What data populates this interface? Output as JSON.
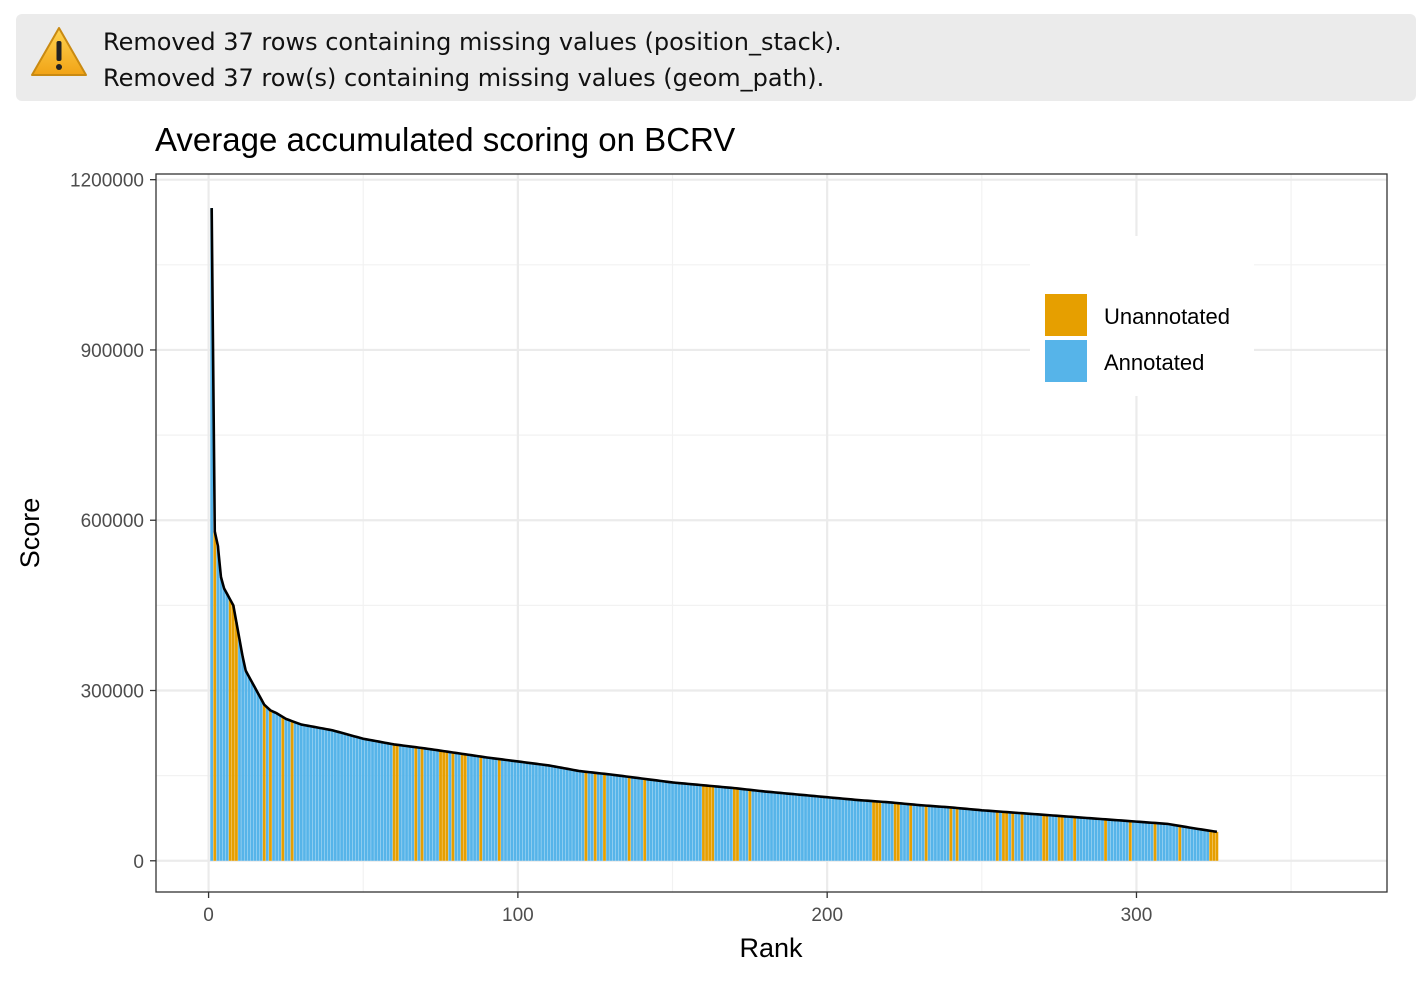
{
  "warning": {
    "icon": "warning-triangle-icon",
    "lines": [
      "Removed 37 rows containing missing values (position_stack).",
      "Removed 37 row(s) containing missing values (geom_path)."
    ]
  },
  "chart_data": {
    "type": "bar",
    "title": "Average accumulated scoring on BCRV",
    "xlabel": "Rank",
    "ylabel": "Score",
    "xlim": [
      -17,
      381
    ],
    "ylim": [
      -55000,
      1210000
    ],
    "x_ticks": [
      0,
      100,
      200,
      300
    ],
    "y_ticks": [
      0,
      300000,
      600000,
      900000,
      1200000
    ],
    "y_tick_labels": [
      "0",
      "300000",
      "600000",
      "900000",
      "1200000"
    ],
    "grid": true,
    "legend_position": "top-right",
    "n_bars": 326,
    "unannotated_ranks": [
      2,
      7,
      8,
      9,
      18,
      20,
      24,
      27,
      60,
      61,
      67,
      69,
      75,
      76,
      77,
      79,
      82,
      83,
      88,
      94,
      122,
      125,
      128,
      136,
      141,
      160,
      161,
      162,
      163,
      170,
      171,
      175,
      215,
      216,
      217,
      222,
      223,
      227,
      232,
      240,
      242,
      255,
      257,
      258,
      260,
      263,
      270,
      271,
      275,
      276,
      280,
      290,
      298,
      306,
      314,
      324,
      325,
      326
    ],
    "score_anchors": [
      [
        1,
        1150000
      ],
      [
        2,
        580000
      ],
      [
        3,
        555000
      ],
      [
        4,
        500000
      ],
      [
        5,
        480000
      ],
      [
        6,
        470000
      ],
      [
        7,
        460000
      ],
      [
        8,
        450000
      ],
      [
        9,
        420000
      ],
      [
        10,
        390000
      ],
      [
        11,
        360000
      ],
      [
        12,
        335000
      ],
      [
        14,
        315000
      ],
      [
        16,
        295000
      ],
      [
        18,
        275000
      ],
      [
        20,
        265000
      ],
      [
        22,
        260000
      ],
      [
        25,
        250000
      ],
      [
        30,
        240000
      ],
      [
        40,
        230000
      ],
      [
        50,
        215000
      ],
      [
        60,
        205000
      ],
      [
        70,
        198000
      ],
      [
        80,
        190000
      ],
      [
        90,
        182000
      ],
      [
        100,
        175000
      ],
      [
        110,
        168000
      ],
      [
        120,
        158000
      ],
      [
        130,
        152000
      ],
      [
        140,
        145000
      ],
      [
        150,
        138000
      ],
      [
        160,
        133000
      ],
      [
        170,
        128000
      ],
      [
        180,
        122000
      ],
      [
        190,
        117000
      ],
      [
        200,
        112000
      ],
      [
        210,
        107000
      ],
      [
        220,
        103000
      ],
      [
        230,
        98000
      ],
      [
        240,
        94000
      ],
      [
        250,
        89000
      ],
      [
        260,
        85000
      ],
      [
        270,
        81000
      ],
      [
        280,
        77000
      ],
      [
        290,
        73000
      ],
      [
        300,
        69000
      ],
      [
        310,
        65000
      ],
      [
        320,
        56000
      ],
      [
        326,
        51000
      ]
    ],
    "series": [
      {
        "name": "Unannotated",
        "color": "#E69F00"
      },
      {
        "name": "Annotated",
        "color": "#56B4E9"
      }
    ]
  }
}
